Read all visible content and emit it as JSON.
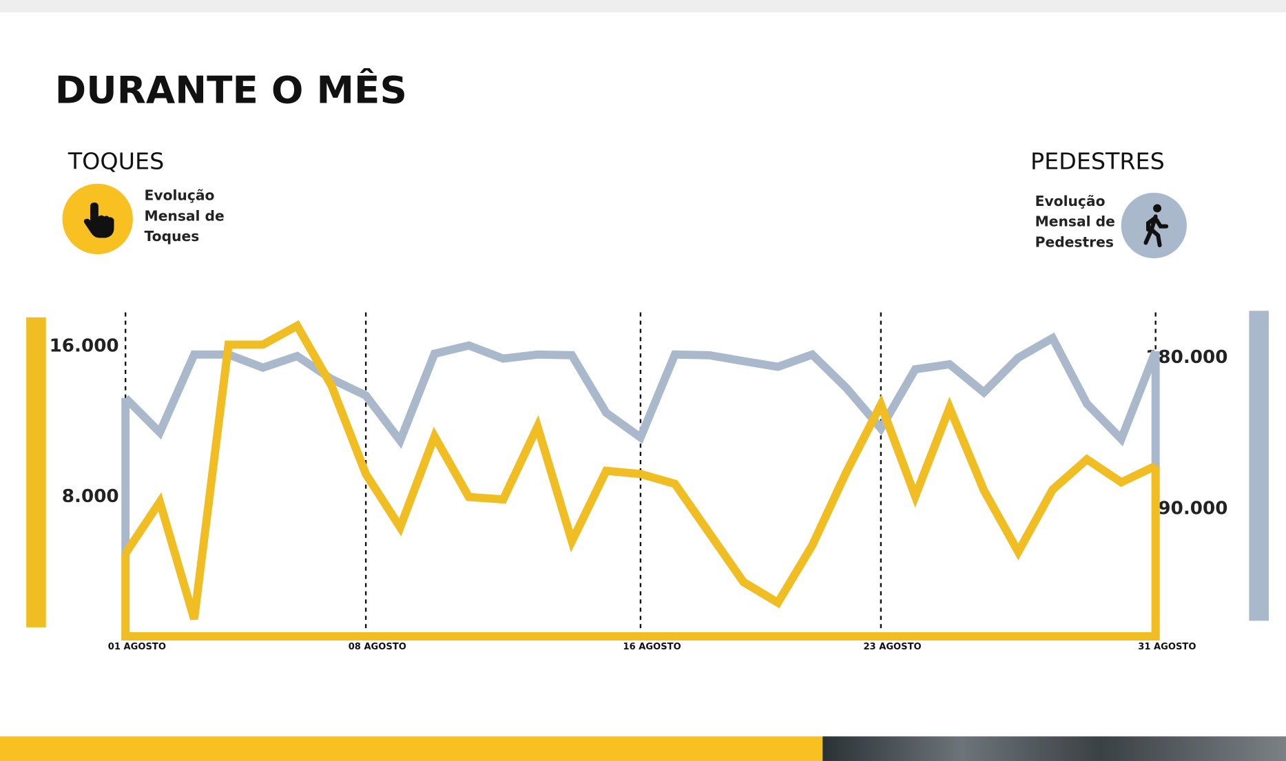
{
  "chart_data": {
    "type": "line",
    "title": "DURANTE O MÊS",
    "categories": [
      "01 AGOSTO",
      null,
      null,
      null,
      null,
      null,
      null,
      "08 AGOSTO",
      null,
      null,
      null,
      null,
      null,
      null,
      null,
      "16 AGOSTO",
      null,
      null,
      null,
      null,
      null,
      null,
      "23 AGOSTO",
      null,
      null,
      null,
      null,
      null,
      null,
      null,
      "31 AGOSTO"
    ],
    "series": [
      {
        "name": "TOQUES",
        "description": "Evolução Mensal de Toques",
        "color": "#f0bd22",
        "values": [
          5000,
          7740,
          1520,
          16090,
          16090,
          17090,
          13910,
          9220,
          6390,
          11220,
          8000,
          7870,
          11740,
          5650,
          9390,
          9220,
          8700,
          6090,
          3480,
          2390,
          5430,
          9350,
          12910,
          8040,
          12740,
          8350,
          5090,
          8390,
          10000,
          8780,
          9650
        ]
      },
      {
        "name": "PEDESTRES",
        "description": "Evolução Mensal de Pedestres",
        "color": "#a9b9cb",
        "axis": "y2",
        "values": [
          156000,
          135500,
          181900,
          181900,
          174100,
          181000,
          167300,
          157500,
          130600,
          182400,
          187300,
          179500,
          181900,
          181500,
          147200,
          132500,
          181900,
          181500,
          178000,
          174600,
          181900,
          161900,
          137900,
          173100,
          176100,
          159400,
          180000,
          191700,
          152600,
          131600,
          183900
        ]
      }
    ],
    "ylim": [
      600,
      17800
    ],
    "yticks": [
      {
        "value": 8000,
        "label": "8.000"
      },
      {
        "value": 16000,
        "label": "16.000"
      }
    ],
    "y2lim": [
      14000,
      207000
    ],
    "y2ticks": [
      {
        "value": 90000,
        "label": "90.000"
      },
      {
        "value": 180000,
        "label": "180.000"
      }
    ],
    "grid": false
  }
}
